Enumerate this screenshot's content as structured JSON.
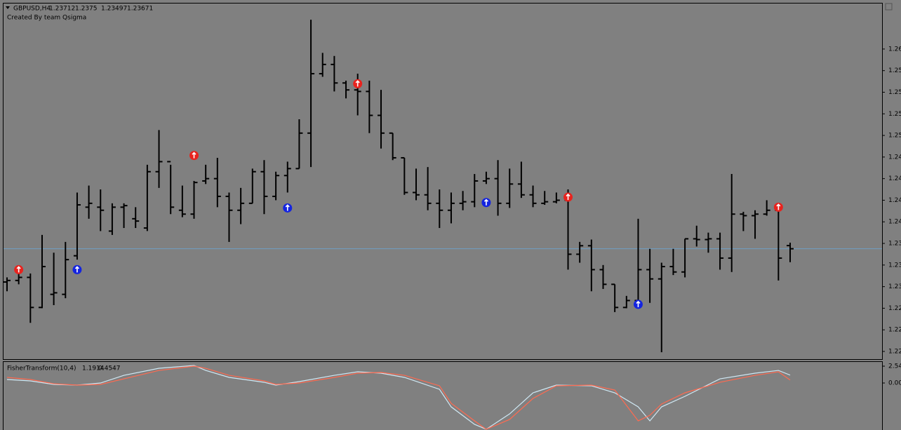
{
  "chart_data": {
    "type": "ohlc",
    "title": "GBPUSD,H4",
    "subtitle": "Created By team Qsigma",
    "color": "#000000",
    "price_line_color": "#6f9fc4",
    "ylim": [
      1.2224,
      1.2685
    ],
    "yticks": [
      {
        "value": 1.2234,
        "label": "1.22"
      },
      {
        "value": 1.2262,
        "label": "1.22"
      },
      {
        "value": 1.229,
        "label": "1.22"
      },
      {
        "value": 1.2318,
        "label": "1.23"
      },
      {
        "value": 1.2346,
        "label": "1.23"
      },
      {
        "value": 1.2374,
        "label": "1.23"
      },
      {
        "value": 1.2402,
        "label": "1.24"
      },
      {
        "value": 1.243,
        "label": "1.24"
      },
      {
        "value": 1.2458,
        "label": "1.24"
      },
      {
        "value": 1.2486,
        "label": "1.24"
      },
      {
        "value": 1.2514,
        "label": "1.25"
      },
      {
        "value": 1.2542,
        "label": "1.25"
      },
      {
        "value": 1.257,
        "label": "1.25"
      },
      {
        "value": 1.2598,
        "label": "1.25"
      },
      {
        "value": 1.2626,
        "label": "1.26"
      }
    ],
    "open": [
      1.2324,
      1.2326,
      1.233,
      1.2291,
      1.2308,
      1.2308,
      1.2358,
      1.2421,
      1.2421,
      1.239,
      1.2421,
      1.2406,
      1.2394,
      1.2467,
      1.248,
      1.2417,
      1.2412,
      1.2455,
      1.2458,
      1.2435,
      1.2417,
      1.2426,
      1.2467,
      1.2435,
      1.2462,
      1.2471,
      1.2517,
      1.2594,
      1.2606,
      1.2582,
      1.2573,
      1.2571,
      1.254,
      1.2517,
      1.2485,
      1.244,
      1.2437,
      1.2426,
      1.2417,
      1.2426,
      1.2428,
      1.2455,
      1.2458,
      1.2426,
      1.2451,
      1.2437,
      1.2426,
      1.2428,
      1.243,
      1.236,
      1.2371,
      1.234,
      1.2321,
      1.2291,
      1.23,
      1.234,
      1.2328,
      1.2344,
      1.2337,
      1.238,
      1.2379,
      1.238,
      1.2355,
      1.2412,
      1.241,
      1.2412,
      1.2417,
      1.23712
    ],
    "high": [
      1.233,
      1.234,
      1.2335,
      1.2385,
      1.2362,
      1.2376,
      1.244,
      1.2449,
      1.2444,
      1.2426,
      1.2426,
      1.2421,
      1.2476,
      1.2521,
      1.2476,
      1.2449,
      1.2455,
      1.2476,
      1.2485,
      1.244,
      1.2446,
      1.2471,
      1.2482,
      1.2467,
      1.248,
      1.2535,
      1.2664,
      1.2621,
      1.2617,
      1.2585,
      1.2594,
      1.2585,
      1.2573,
      1.2517,
      1.2485,
      1.2471,
      1.2473,
      1.2444,
      1.244,
      1.2442,
      1.2464,
      1.2467,
      1.2482,
      1.2471,
      1.248,
      1.2449,
      1.2442,
      1.244,
      1.2444,
      1.2376,
      1.2379,
      1.2346,
      1.2321,
      1.2306,
      1.2406,
      1.2367,
      1.2349,
      1.2367,
      1.238,
      1.2397,
      1.2388,
      1.2388,
      1.2464,
      1.2415,
      1.2417,
      1.243,
      1.2419,
      1.2375
    ],
    "low": [
      1.2312,
      1.2321,
      1.2271,
      1.229,
      1.2294,
      1.2303,
      1.2353,
      1.2406,
      1.239,
      1.2385,
      1.2394,
      1.2394,
      1.239,
      1.2446,
      1.2412,
      1.2408,
      1.2406,
      1.2451,
      1.2421,
      1.2376,
      1.2399,
      1.2426,
      1.2412,
      1.243,
      1.244,
      1.2471,
      1.2473,
      1.259,
      1.2571,
      1.2562,
      1.254,
      1.2517,
      1.2497,
      1.2482,
      1.2437,
      1.243,
      1.2417,
      1.2394,
      1.24,
      1.2417,
      1.2421,
      1.2451,
      1.241,
      1.242,
      1.2433,
      1.2421,
      1.2424,
      1.2426,
      1.234,
      1.2349,
      1.2312,
      1.2315,
      1.2285,
      1.229,
      1.229,
      1.2297,
      1.2233,
      1.2333,
      1.233,
      1.237,
      1.2362,
      1.234,
      1.2337,
      1.239,
      1.238,
      1.241,
      1.2326,
      1.23497
    ],
    "close": [
      1.2326,
      1.233,
      1.2291,
      1.2344,
      1.231,
      1.2353,
      1.2424,
      1.2426,
      1.2417,
      1.2421,
      1.2423,
      1.2403,
      1.2467,
      1.248,
      1.2421,
      1.2412,
      1.2453,
      1.2458,
      1.2435,
      1.2417,
      1.2426,
      1.2467,
      1.2435,
      1.2462,
      1.2471,
      1.2517,
      1.2594,
      1.2606,
      1.2582,
      1.2573,
      1.2571,
      1.254,
      1.2517,
      1.2485,
      1.244,
      1.2437,
      1.2426,
      1.2417,
      1.2426,
      1.2428,
      1.2455,
      1.2458,
      1.2426,
      1.2451,
      1.2437,
      1.2426,
      1.2428,
      1.243,
      1.236,
      1.2371,
      1.234,
      1.2321,
      1.2291,
      1.23,
      1.234,
      1.2328,
      1.2344,
      1.2337,
      1.238,
      1.2379,
      1.238,
      1.2355,
      1.2412,
      1.241,
      1.2412,
      1.2417,
      1.2355,
      1.23671
    ],
    "sell_signals": {
      "color": "#e8231e",
      "x": [
        1,
        16,
        30,
        48,
        66
      ],
      "values": [
        1.234,
        1.2488,
        1.2581,
        1.2434,
        1.2421
      ]
    },
    "buy_signals": {
      "color": "#1424e0",
      "x": [
        6,
        24,
        41,
        54
      ],
      "values": [
        1.234,
        1.242,
        1.2427,
        1.2295
      ]
    },
    "indicator": {
      "type": "line",
      "title": "FisherTransform(10,4)",
      "ylim": [
        -7.09,
        3.07
      ],
      "yticks": [
        2.54,
        {
          "value": 0,
          "label": "0.00"
        }
      ],
      "x": [
        0,
        2,
        4,
        6,
        8,
        10,
        13,
        16,
        17,
        19,
        22,
        23,
        25,
        28,
        30,
        32,
        34,
        37,
        38,
        40,
        41,
        43,
        45,
        47,
        50,
        52,
        54,
        55,
        56,
        58,
        61,
        64,
        66,
        67
      ],
      "series": [
        {
          "color": "#cfe8f4",
          "values": [
            0.53,
            0.32,
            -0.21,
            -0.32,
            0,
            1.16,
            2.22,
            2.65,
            1.9,
            0.85,
            0.11,
            -0.32,
            0.21,
            1.16,
            1.69,
            1.48,
            0.85,
            -0.95,
            -3.6,
            -6.24,
            -6.98,
            -4.66,
            -1.48,
            -0.32,
            -0.42,
            -1.48,
            -3.6,
            -5.71,
            -3.6,
            -2.01,
            0.63,
            1.48,
            1.9,
            1.1914
          ]
        },
        {
          "color": "#ff6a50",
          "values": [
            0.85,
            0.53,
            -0.11,
            -0.32,
            -0.21,
            0.63,
            1.9,
            2.54,
            2.22,
            1.16,
            0.32,
            -0.21,
            0,
            0.85,
            1.48,
            1.59,
            1.16,
            -0.42,
            -3.07,
            -5.71,
            -6.98,
            -5.5,
            -2.33,
            -0.42,
            -0.32,
            -1.06,
            -5.71,
            -4.87,
            -3.17,
            -1.48,
            0.11,
            1.16,
            1.69,
            0.4547
          ]
        }
      ]
    }
  }
}
